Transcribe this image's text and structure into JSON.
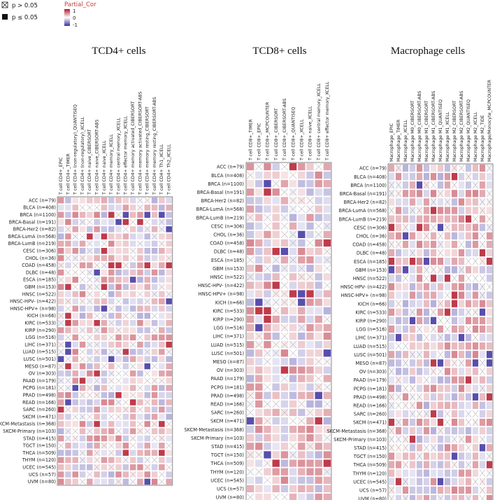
{
  "chart_data": [
    {
      "type": "heatmap",
      "title": "TCD4+ cells",
      "columns": [
        "T cell CD4+_EPIC",
        "T cell CD4+_TIMER",
        "T cell CD4+ (non-regulatory)_QUANTISEQ",
        "T cell CD4+ (non-regulatory)_XCELL",
        "T cell CD4+ naive_CIBERSORT",
        "T cell CD4+ naive_CIBERSORT-ABS",
        "T cell CD4+ naive_XCELL",
        "T cell CD4+ memory_XCELL",
        "T cell CD4+ central memory_XCELL",
        "T cell CD4+ effector memory_XCELL",
        "T cell CD4+ memory activated_CIBERSORT",
        "T cell CD4+ memory activated_CIBERSORT-ABS",
        "T cell CD4+ memory resting_CIBERSORT",
        "T cell CD4+ memory resting_CIBERSORT-ABS",
        "T cell CD4+ Th1_XCELL",
        "T cell CD4+ Th2_XCELL"
      ],
      "values_note": "Partial_Cor per cancer type (rows) x estimate (columns); values estimated from cell colour"
    },
    {
      "type": "heatmap",
      "title": "TCD8+ cells",
      "columns": [
        "T cell CD8+_TIMER",
        "T cell CD8+_EPIC",
        "T cell CD8+_MCPCOUNTER",
        "T cell CD8+_CIBERSORT",
        "T cell CD8+_CIBERSORT-ABS",
        "T cell CD8+_QUANTISEQ",
        "T cell CD8+_XCELL",
        "T cell CD8+ naive_XCELL",
        "T cell CD8+ central memory_XCELL",
        "T cell CD8+ effector memory_XCELL"
      ],
      "values_note": "Partial_Cor per cancer type (rows) x estimate (columns); values estimated from cell colour"
    },
    {
      "type": "heatmap",
      "title": "Macrophage cells",
      "columns": [
        "Macrophage_EPIC",
        "Macrophage_TIMER",
        "Macrophage_XCELL",
        "Macrophage M0_CIBERSORT",
        "Macrophage M0_CIBERSORT-ABS",
        "Macrophage M1_CIBERSORT",
        "Macrophage M1_CIBERSORT-ABS",
        "Macrophage M1_QUANTISEQ",
        "Macrophage M1_XCELL",
        "Macrophage M2_CIBERSORT",
        "Macrophage M2_CIBERSORT-ABS",
        "Macrophage M2_QUANTISEQ",
        "Macrophage M2_XCELL",
        "Macrophage M2_TIDE",
        "Macrophage/Monocyte_MCPCOUNTER"
      ],
      "values_note": "Partial_Cor per cancer type (rows) x estimate (columns); values estimated from cell colour"
    }
  ],
  "rows": [
    "ACC (n=79)",
    "BLCA (n=408)",
    "BRCA (n=1100)",
    "BRCA-Basal (n=191)",
    "BRCA-Her2 (n=82)",
    "BRCA-LumA (n=568)",
    "BRCA-LumB (n=219)",
    "CESC (n=306)",
    "CHOL (n=36)",
    "COAD (n=458)",
    "DLBC (n=48)",
    "ESCA (n=185)",
    "GBM (n=153)",
    "HNSC (n=522)",
    "HNSC-HPV- (n=422)",
    "HNSC-HPV+ (n=98)",
    "KICH (n=66)",
    "KIRC (n=533)",
    "KIRP (n=290)",
    "LGG (n=516)",
    "LIHC (n=371)",
    "LUAD (n=515)",
    "LUSC (n=501)",
    "MESO (n=87)",
    "OV (n=303)",
    "PAAD (n=179)",
    "PCPG (n=181)",
    "PRAD (n=498)",
    "READ (n=166)",
    "SARC (n=260)",
    "SKCM (n=471)",
    "SKCM-Metastasis (n=368)",
    "SKCM-Primary (n=103)",
    "STAD (n=415)",
    "TGCT (n=150)",
    "THCA (n=509)",
    "THYM (n=120)",
    "UCEC (n=545)",
    "UCS (n=57)",
    "UVM (n=80)"
  ],
  "legend": {
    "crossed_label": "p > 0.05",
    "filled_label": "p ≤ 0.05",
    "color_title": "Partial_Cor",
    "ticks": [
      "1",
      "0",
      "-1"
    ],
    "colors": {
      "positive": "#b2182b",
      "zero": "#ffffff",
      "negative": "#3b2f9e"
    }
  },
  "titles": [
    "TCD4+ cells",
    "TCD8+ cells",
    "Macrophage cells"
  ]
}
